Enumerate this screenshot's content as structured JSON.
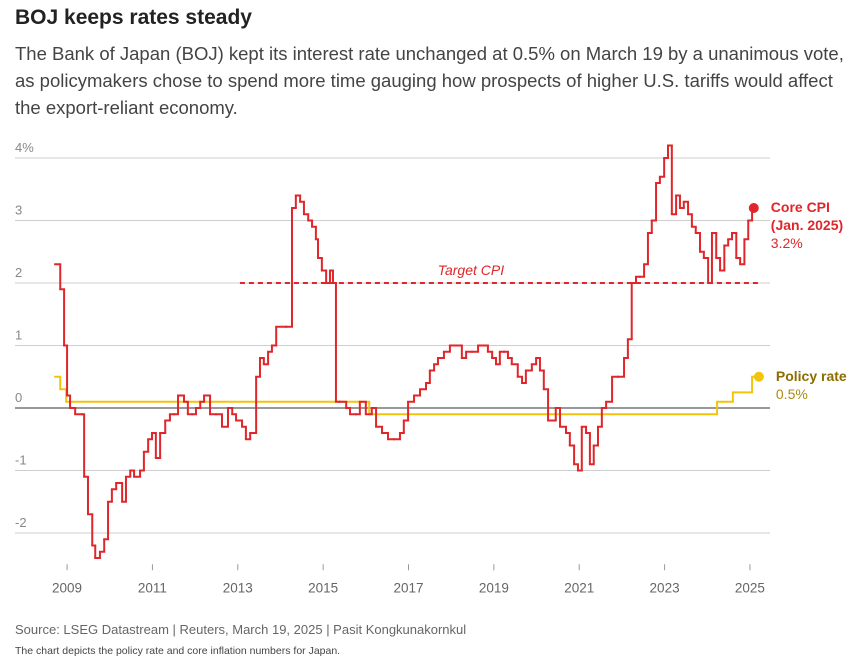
{
  "title": "BOJ keeps rates steady",
  "subtitle": "The Bank of Japan (BOJ) kept its interest rate unchanged at 0.5% on March 19 by a unanimous vote, as policymakers chose to spend more time gauging how prospects of higher U.S. tariffs would affect the export-reliant economy.",
  "source": "Source: LSEG Datastream | Reuters, March 19, 2025 | Pasit Kongkunakornkul",
  "note": "The chart depicts the policy rate and core inflation numbers for Japan.",
  "chart_data": {
    "type": "line",
    "step": true,
    "xlim": [
      2007.78,
      2025.47
    ],
    "xticks": [
      2009,
      2011,
      2013,
      2015,
      2017,
      2019,
      2021,
      2023,
      2025
    ],
    "ylim": [
      -2.5,
      4.3
    ],
    "yticks": [
      {
        "value": 4,
        "label": "4%"
      },
      3,
      2,
      1,
      0,
      -1,
      -2
    ],
    "grid": true,
    "reference_line": {
      "label": "Target CPI",
      "value": 2,
      "x": [
        2013.05,
        2025.28
      ],
      "color": "#e0262a"
    },
    "series": [
      {
        "name": "Core CPI (Jan. 2025)",
        "color": "#e0262a",
        "label_color": "#e0262a",
        "end_value": {
          "value": 3.2,
          "label": "3.2%"
        },
        "x": [
          2008.72,
          2008.84,
          2008.93,
          2009.0,
          2009.07,
          2009.19,
          2009.35,
          2009.4,
          2009.49,
          2009.59,
          2009.66,
          2009.77,
          2009.87,
          2009.96,
          2010.05,
          2010.15,
          2010.29,
          2010.38,
          2010.48,
          2010.57,
          2010.71,
          2010.8,
          2010.9,
          2010.99,
          2011.08,
          2011.18,
          2011.3,
          2011.41,
          2011.51,
          2011.6,
          2011.74,
          2011.83,
          2011.93,
          2012.02,
          2012.12,
          2012.21,
          2012.35,
          2012.49,
          2012.63,
          2012.77,
          2012.87,
          2012.96,
          2013.1,
          2013.19,
          2013.29,
          2013.43,
          2013.52,
          2013.61,
          2013.71,
          2013.8,
          2013.9,
          2014.13,
          2014.27,
          2014.36,
          2014.46,
          2014.55,
          2014.65,
          2014.74,
          2014.83,
          2014.88,
          2014.97,
          2015.07,
          2015.16,
          2015.23,
          2015.3,
          2015.39,
          2015.54,
          2015.63,
          2015.77,
          2015.86,
          2016.0,
          2016.14,
          2016.24,
          2016.38,
          2016.52,
          2016.66,
          2016.8,
          2016.89,
          2016.99,
          2017.13,
          2017.27,
          2017.41,
          2017.5,
          2017.6,
          2017.69,
          2017.83,
          2017.97,
          2018.11,
          2018.25,
          2018.35,
          2018.49,
          2018.63,
          2018.77,
          2018.86,
          2018.96,
          2019.05,
          2019.14,
          2019.24,
          2019.33,
          2019.42,
          2019.56,
          2019.66,
          2019.75,
          2019.89,
          2019.99,
          2020.08,
          2020.17,
          2020.27,
          2020.36,
          2020.45,
          2020.55,
          2020.69,
          2020.78,
          2020.88,
          2020.97,
          2021.06,
          2021.16,
          2021.25,
          2021.34,
          2021.44,
          2021.53,
          2021.63,
          2021.77,
          2021.91,
          2022.05,
          2022.14,
          2022.23,
          2022.33,
          2022.42,
          2022.52,
          2022.61,
          2022.7,
          2022.8,
          2022.89,
          2022.99,
          2023.08,
          2023.17,
          2023.27,
          2023.36,
          2023.45,
          2023.55,
          2023.64,
          2023.73,
          2023.83,
          2023.92,
          2024.02,
          2024.11,
          2024.21,
          2024.3,
          2024.4,
          2024.49,
          2024.58,
          2024.68,
          2024.77,
          2024.87,
          2024.96,
          2025.05,
          2025.09
        ],
        "values": [
          2.3,
          1.9,
          1.0,
          0.2,
          0.0,
          -0.1,
          -0.1,
          -1.1,
          -1.7,
          -2.2,
          -2.4,
          -2.3,
          -2.1,
          -1.5,
          -1.3,
          -1.2,
          -1.5,
          -1.1,
          -1.0,
          -1.1,
          -1.0,
          -0.7,
          -0.5,
          -0.4,
          -0.8,
          -0.4,
          -0.2,
          -0.1,
          -0.1,
          0.2,
          0.1,
          -0.1,
          -0.1,
          0.0,
          0.1,
          0.2,
          -0.1,
          -0.1,
          -0.3,
          0.0,
          -0.1,
          -0.2,
          -0.3,
          -0.5,
          -0.4,
          0.5,
          0.8,
          0.7,
          0.9,
          1.0,
          1.3,
          1.3,
          3.2,
          3.4,
          3.3,
          3.1,
          3.0,
          2.9,
          2.7,
          2.4,
          2.2,
          2.0,
          2.2,
          2.0,
          0.1,
          0.1,
          0.0,
          -0.1,
          -0.1,
          0.1,
          -0.1,
          0.0,
          -0.3,
          -0.4,
          -0.5,
          -0.5,
          -0.4,
          -0.2,
          0.1,
          0.2,
          0.3,
          0.4,
          0.6,
          0.7,
          0.8,
          0.9,
          1.0,
          1.0,
          0.8,
          0.9,
          0.9,
          1.0,
          1.0,
          0.9,
          0.8,
          0.7,
          0.9,
          0.9,
          0.8,
          0.7,
          0.5,
          0.4,
          0.6,
          0.7,
          0.8,
          0.6,
          0.3,
          -0.2,
          -0.2,
          0.0,
          -0.3,
          -0.4,
          -0.6,
          -0.9,
          -1.0,
          -0.3,
          -0.4,
          -0.9,
          -0.6,
          -0.3,
          0.0,
          0.1,
          0.5,
          0.5,
          0.8,
          1.1,
          2.0,
          2.1,
          2.1,
          2.3,
          2.8,
          3.0,
          3.6,
          3.7,
          4.0,
          4.2,
          3.1,
          3.4,
          3.2,
          3.3,
          3.1,
          2.9,
          2.8,
          2.5,
          2.4,
          2.0,
          2.8,
          2.4,
          2.2,
          2.6,
          2.7,
          2.8,
          2.4,
          2.3,
          2.7,
          3.0,
          3.2,
          3.2
        ]
      },
      {
        "name": "Policy rate",
        "color": "#f2c40c",
        "label_color": "#8c6d00",
        "end_value": {
          "value": 0.5,
          "label": "0.5%"
        },
        "value_color": "#b08a10",
        "x": [
          2008.72,
          2008.84,
          2008.98,
          2016.08,
          2024.23,
          2024.6,
          2025.05,
          2025.21
        ],
        "values": [
          0.5,
          0.3,
          0.1,
          -0.1,
          0.1,
          0.25,
          0.5,
          0.5
        ]
      }
    ]
  }
}
